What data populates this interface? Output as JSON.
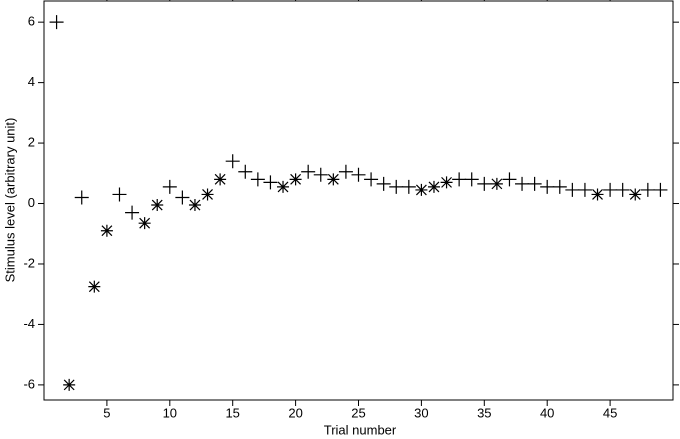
{
  "chart_data": {
    "type": "scatter",
    "x_label": "Trial number",
    "y_label": "Stimulus level (arbitrary unit)",
    "xlim": [
      0,
      50
    ],
    "ylim": [
      -6.5,
      6.7
    ],
    "xticks": [
      5,
      10,
      15,
      20,
      25,
      30,
      35,
      40,
      45
    ],
    "yticks": [
      -6,
      -4,
      -2,
      0,
      2,
      4,
      6
    ],
    "series": [
      {
        "marker": "plus",
        "color": "#000000",
        "x": [
          1,
          3,
          6,
          7,
          10,
          11,
          15,
          16,
          17,
          18,
          21,
          22,
          24,
          25,
          26,
          27,
          28,
          29,
          33,
          34,
          35,
          37,
          38,
          39,
          40,
          41,
          42,
          43,
          45,
          46,
          48,
          49
        ],
        "values": [
          6,
          0.2,
          0.3,
          -0.3,
          0.55,
          0.2,
          1.4,
          1.05,
          0.8,
          0.7,
          1.05,
          0.95,
          1.05,
          0.95,
          0.8,
          0.65,
          0.55,
          0.55,
          0.8,
          0.8,
          0.65,
          0.8,
          0.65,
          0.65,
          0.55,
          0.55,
          0.45,
          0.45,
          0.45,
          0.45,
          0.45,
          0.45
        ]
      },
      {
        "marker": "asterisk",
        "color": "#000000",
        "x": [
          2,
          4,
          5,
          8,
          9,
          12,
          13,
          14,
          19,
          20,
          23,
          30,
          31,
          32,
          36,
          44,
          47
        ],
        "values": [
          -6,
          -2.75,
          -0.9,
          -0.65,
          -0.05,
          -0.05,
          0.3,
          0.8,
          0.55,
          0.8,
          0.8,
          0.45,
          0.55,
          0.7,
          0.65,
          0.3,
          0.3
        ]
      }
    ]
  }
}
